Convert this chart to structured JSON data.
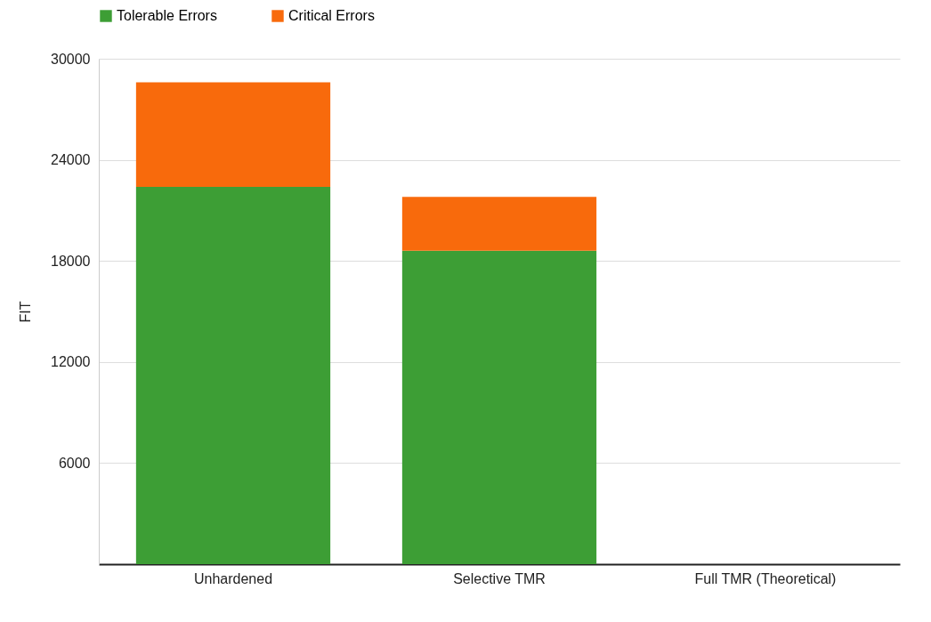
{
  "chart_data": {
    "type": "bar",
    "stacked": true,
    "ylabel": "FIT",
    "categories": [
      "Unhardened",
      "Selective TMR",
      "Full TMR (Theoretical)"
    ],
    "series": [
      {
        "name": "Tolerable Errors",
        "color": "#3d9e35",
        "values": [
          22400,
          18600,
          0
        ]
      },
      {
        "name": "Critical Errors",
        "color": "#f86a0c",
        "values": [
          6200,
          3200,
          0
        ]
      }
    ],
    "ylim": [
      0,
      30000
    ],
    "yticks": [
      6000,
      12000,
      18000,
      24000,
      30000
    ],
    "grid": "y",
    "legend": "top"
  }
}
